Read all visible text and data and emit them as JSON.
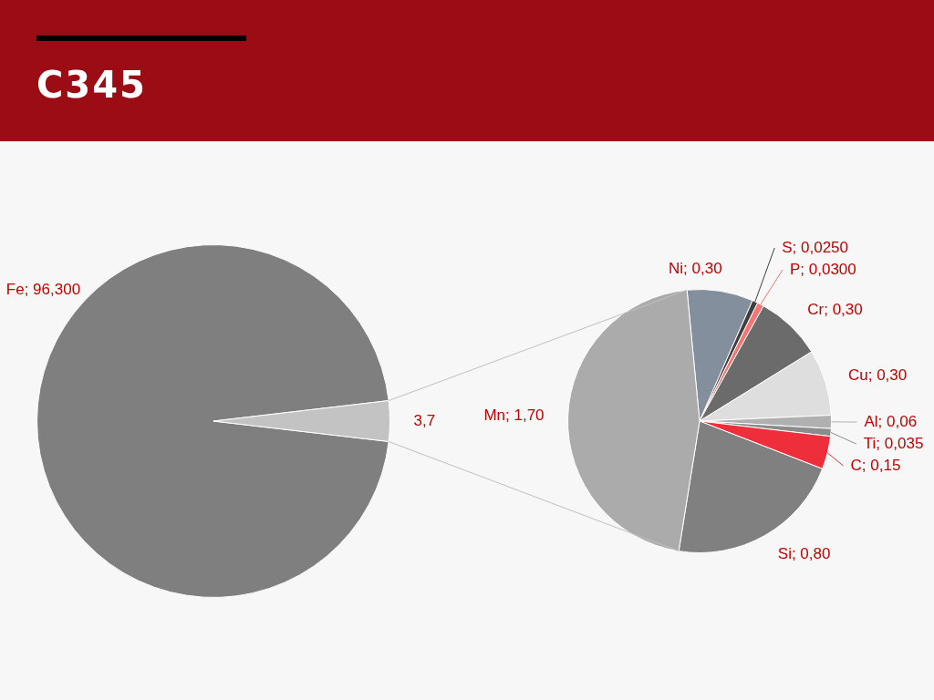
{
  "chart_data": [
    {
      "type": "pie",
      "title": "C345",
      "categories": [
        "Fe",
        null
      ],
      "values": [
        96.3,
        3.7
      ],
      "colors": [
        "#7f7f7f",
        "#c3c3c3"
      ],
      "value_labels": [
        "96,300",
        "3,7"
      ]
    },
    {
      "type": "pie",
      "categories": [
        "Ni",
        "S",
        "P",
        "Cr",
        "Cu",
        "Al",
        "Ti",
        "C",
        "Si",
        "Mn"
      ],
      "values": [
        0.3,
        0.025,
        0.03,
        0.3,
        0.3,
        0.06,
        0.035,
        0.15,
        0.8,
        1.7
      ],
      "colors": [
        "#838f9d",
        "#3f3f3f",
        "#f57474",
        "#6b6b6b",
        "#dedede",
        "#b0b0b0",
        "#8c8c8c",
        "#ee2e3b",
        "#808080",
        "#ababab"
      ],
      "value_labels": [
        "0,30",
        "0,0250",
        "0,0300",
        "0,30",
        "0,30",
        "0,06",
        "0,035",
        "0,15",
        "0,80",
        "1,70"
      ]
    }
  ]
}
